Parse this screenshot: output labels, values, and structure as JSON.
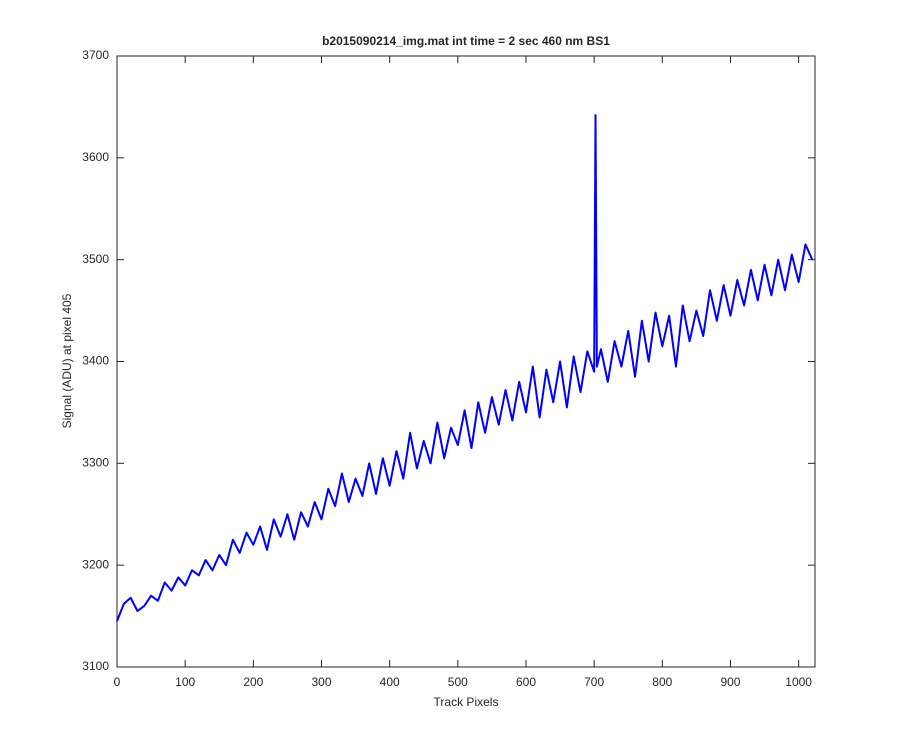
{
  "chart_data": {
    "type": "line",
    "title": "b2015090214_img.mat int time = 2 sec  460 nm BS1",
    "x_label": "Track Pixels",
    "y_label": "Signal (ADU) at pixel 405",
    "x": [
      0,
      10,
      20,
      30,
      40,
      50,
      60,
      70,
      80,
      90,
      100,
      110,
      120,
      130,
      140,
      150,
      160,
      170,
      180,
      190,
      200,
      210,
      220,
      230,
      240,
      250,
      260,
      270,
      280,
      290,
      300,
      310,
      320,
      330,
      340,
      350,
      360,
      370,
      380,
      390,
      400,
      410,
      420,
      430,
      440,
      450,
      460,
      470,
      480,
      490,
      500,
      510,
      520,
      530,
      540,
      550,
      560,
      570,
      580,
      590,
      600,
      610,
      620,
      630,
      640,
      650,
      660,
      670,
      680,
      690,
      700,
      702,
      704,
      710,
      720,
      730,
      740,
      750,
      760,
      770,
      780,
      790,
      800,
      810,
      820,
      830,
      840,
      850,
      860,
      870,
      880,
      890,
      900,
      910,
      920,
      930,
      940,
      950,
      960,
      970,
      980,
      990,
      1000,
      1010,
      1020
    ],
    "series": [
      {
        "color": "#0000ff",
        "values": [
          3145,
          3162,
          3168,
          3155,
          3160,
          3170,
          3165,
          3183,
          3175,
          3188,
          3180,
          3195,
          3190,
          3205,
          3195,
          3210,
          3200,
          3225,
          3212,
          3232,
          3220,
          3238,
          3215,
          3245,
          3228,
          3250,
          3225,
          3252,
          3238,
          3262,
          3245,
          3275,
          3258,
          3290,
          3262,
          3285,
          3268,
          3300,
          3270,
          3305,
          3278,
          3312,
          3285,
          3330,
          3295,
          3322,
          3300,
          3340,
          3305,
          3335,
          3318,
          3352,
          3315,
          3360,
          3330,
          3365,
          3338,
          3372,
          3342,
          3380,
          3350,
          3395,
          3345,
          3392,
          3360,
          3400,
          3355,
          3405,
          3370,
          3410,
          3390,
          3642,
          3395,
          3412,
          3380,
          3420,
          3395,
          3430,
          3385,
          3440,
          3400,
          3448,
          3415,
          3445,
          3395,
          3455,
          3420,
          3450,
          3425,
          3470,
          3440,
          3475,
          3445,
          3480,
          3455,
          3490,
          3460,
          3495,
          3465,
          3500,
          3470,
          3505,
          3478,
          3515,
          3500
        ]
      }
    ],
    "xlim": [
      0,
      1024
    ],
    "xticks": [
      0,
      100,
      200,
      300,
      400,
      500,
      600,
      700,
      800,
      900,
      1000
    ],
    "ylim": [
      3100,
      3700
    ],
    "yticks": [
      3100,
      3200,
      3300,
      3400,
      3500,
      3600,
      3700
    ]
  }
}
